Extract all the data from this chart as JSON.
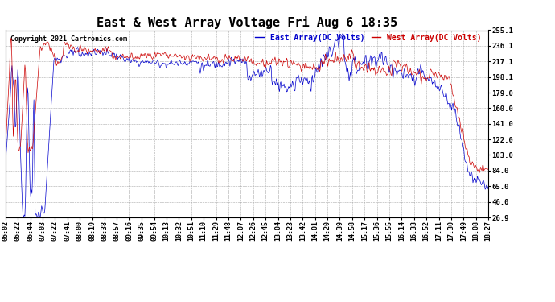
{
  "title": "East & West Array Voltage Fri Aug 6 18:35",
  "copyright": "Copyright 2021 Cartronics.com",
  "legend_east": "East Array(DC Volts)",
  "legend_west": "West Array(DC Volts)",
  "color_east": "#0000cc",
  "color_west": "#cc0000",
  "yticks": [
    26.9,
    46.0,
    65.0,
    84.0,
    103.0,
    122.0,
    141.0,
    160.0,
    179.0,
    198.1,
    217.1,
    236.1,
    255.1
  ],
  "xtick_labels": [
    "06:02",
    "06:22",
    "06:44",
    "07:03",
    "07:22",
    "07:41",
    "08:00",
    "08:19",
    "08:38",
    "08:57",
    "09:16",
    "09:35",
    "09:54",
    "10:13",
    "10:32",
    "10:51",
    "11:10",
    "11:29",
    "11:48",
    "12:07",
    "12:26",
    "12:45",
    "13:04",
    "13:23",
    "13:42",
    "14:01",
    "14:20",
    "14:39",
    "14:58",
    "15:17",
    "15:36",
    "15:55",
    "16:14",
    "16:33",
    "16:52",
    "17:11",
    "17:30",
    "17:49",
    "18:08",
    "18:27"
  ],
  "ymin": 26.9,
  "ymax": 255.1,
  "background_color": "#ffffff",
  "grid_color": "#aaaaaa",
  "title_fontsize": 11,
  "tick_fontsize": 6.5,
  "copyright_fontsize": 6,
  "legend_fontsize": 7,
  "line_width": 0.5
}
